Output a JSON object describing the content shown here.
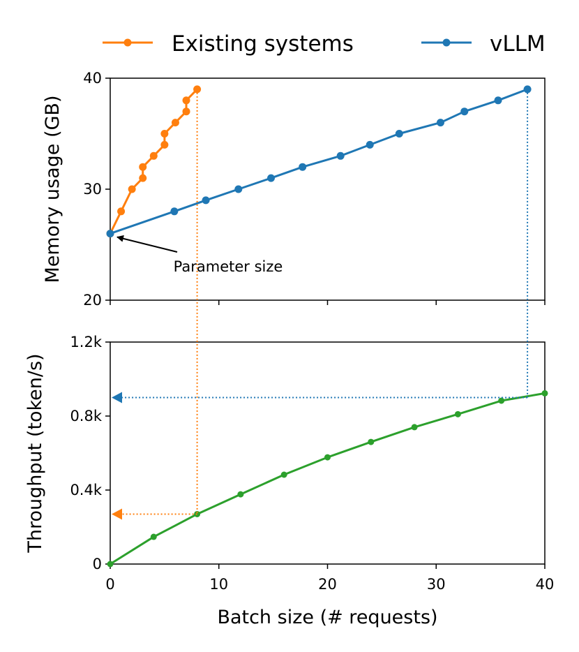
{
  "chart_data": [
    {
      "type": "line",
      "panel": "memory",
      "ylabel": "Memory usage (GB)",
      "xlim": [
        0,
        40
      ],
      "ylim": [
        20,
        40
      ],
      "yticks": [
        20,
        30,
        40
      ],
      "ytick_labels": [
        "20",
        "30",
        "40"
      ],
      "xticks": [
        0,
        10,
        20,
        30,
        40
      ],
      "legend": {
        "placement": "top",
        "entries": [
          "Existing systems",
          "vLLM"
        ]
      },
      "series": [
        {
          "name": "Existing systems",
          "color": "#ff7f0e",
          "x": [
            0,
            1,
            2,
            3,
            3,
            4,
            5,
            5,
            6,
            7,
            7,
            8
          ],
          "y": [
            26,
            28,
            30,
            31,
            32,
            33,
            34,
            35,
            36,
            37,
            38,
            39
          ]
        },
        {
          "name": "vLLM",
          "color": "#1f77b4",
          "x": [
            0,
            5.9,
            8.8,
            11.8,
            14.8,
            17.7,
            21.2,
            23.9,
            26.6,
            30.4,
            32.6,
            35.7,
            38.4
          ],
          "y": [
            26,
            28,
            29,
            30,
            31,
            32,
            33,
            34,
            35,
            36,
            37,
            38,
            39
          ]
        }
      ],
      "annotations": [
        {
          "text": "Parameter size",
          "points_to": {
            "x": 0,
            "y": 26
          }
        }
      ]
    },
    {
      "type": "line",
      "panel": "throughput",
      "xlabel": "Batch size (# requests)",
      "ylabel": "Throughput (token/s)",
      "xlim": [
        0,
        40
      ],
      "ylim": [
        0,
        1.2
      ],
      "yticks": [
        0,
        0.4,
        0.8,
        1.2
      ],
      "ytick_labels": [
        "0",
        "0.4k",
        "0.8k",
        "1.2k"
      ],
      "xticks": [
        0,
        10,
        20,
        30,
        40
      ],
      "xtick_labels": [
        "0",
        "10",
        "20",
        "30",
        "40"
      ],
      "series": [
        {
          "color": "#2ca02c",
          "x": [
            0,
            4,
            8,
            12,
            16,
            20,
            24,
            28,
            32,
            36,
            40
          ],
          "y": [
            0,
            0.147,
            0.27,
            0.377,
            0.483,
            0.577,
            0.66,
            0.74,
            0.81,
            0.883,
            0.923
          ]
        }
      ],
      "reference_lines": [
        {
          "color": "#ff7f0e",
          "batch": 8,
          "throughput": 0.27
        },
        {
          "color": "#1f77b4",
          "batch": 38.4,
          "throughput": 0.9
        }
      ]
    }
  ]
}
